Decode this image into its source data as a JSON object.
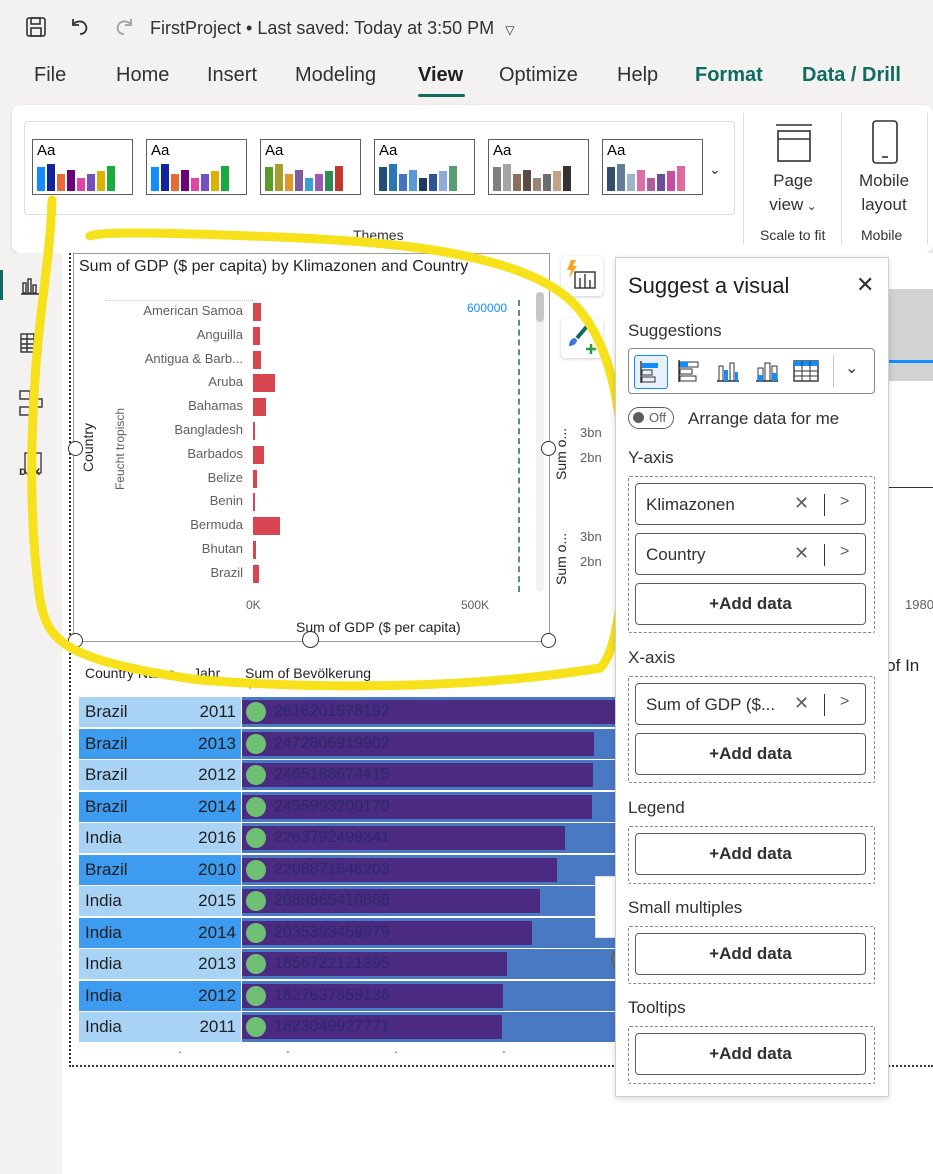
{
  "titlebar": {
    "doc_title": "FirstProject",
    "separator": "•",
    "last_saved": "Last saved: Today at 3:50 PM"
  },
  "menu": {
    "items": [
      "File",
      "Home",
      "Insert",
      "Modeling",
      "View",
      "Optimize",
      "Help",
      "Format",
      "Data / Drill"
    ],
    "active": "View"
  },
  "ribbon": {
    "theme_sample_text": "Aa",
    "themes_group_label": "Themes",
    "page_view_label": "Page",
    "page_view_label2": "view",
    "scale_to_fit_label": "Scale to fit",
    "mobile_layout_label": "Mobile",
    "mobile_layout_label2": "layout",
    "mobile_group_label": "Mobile",
    "themes": [
      [
        "#118dff",
        "#12239e",
        "#e66c37",
        "#6b007b",
        "#e044a7",
        "#744ec2",
        "#d9b300",
        "#1aab40"
      ],
      [
        "#118dff",
        "#12239e",
        "#e66c37",
        "#6b007b",
        "#e044a7",
        "#744ec2",
        "#d9b300",
        "#1aab40"
      ],
      [
        "#5b9b2a",
        "#a5a02c",
        "#e3962b",
        "#7d5e9c",
        "#3b9fd4",
        "#9b59b6",
        "#2e8b57",
        "#c0392b"
      ],
      [
        "#1f4e79",
        "#2e75b6",
        "#4472c4",
        "#5b9bd5",
        "#203864",
        "#2f5597",
        "#8faadc",
        "#5a9e6f"
      ],
      [
        "#7f7f7f",
        "#a5a5a5",
        "#8c6e5d",
        "#5a4a42",
        "#9c8374",
        "#6d6d6d",
        "#c2a38a",
        "#333333"
      ],
      [
        "#334e68",
        "#627d98",
        "#9fb3c8",
        "#d96fa6",
        "#b05d97",
        "#6b4c9a",
        "#c54ea0",
        "#e06aa0"
      ]
    ]
  },
  "chart": {
    "title": "Sum of GDP ($ per capita) by Klimazonen and Country",
    "y_axis_title": "Country",
    "group_label": "Feucht tropisch",
    "x_axis_title": "Sum of GDP ($ per capita)",
    "ref_line_label": "600000",
    "x_ticks": [
      "0K",
      "500K"
    ]
  },
  "chart_data": {
    "type": "bar",
    "title": "Sum of GDP ($ per capita) by Klimazonen and Country",
    "xlabel": "Sum of GDP ($ per capita)",
    "ylabel": "Country",
    "categories": [
      "American Samoa",
      "Anguilla",
      "Antigua & Barb...",
      "Aruba",
      "Bahamas",
      "Bangladesh",
      "Barbados",
      "Belize",
      "Benin",
      "Bermuda",
      "Bhutan",
      "Brazil"
    ],
    "values": [
      17000,
      15000,
      17000,
      49000,
      30000,
      3000,
      25000,
      8000,
      3000,
      60000,
      6000,
      13000
    ],
    "xlim": [
      0,
      700000
    ],
    "x_ticks": [
      "0K",
      "500K"
    ],
    "reference_line": 600000,
    "group": "Feucht tropisch",
    "colors": [
      "#d64550"
    ]
  },
  "behind_visuals": {
    "side_ticks_1": [
      "3bn",
      "2bn"
    ],
    "side_ticks_2": [
      "3bn",
      "2bn"
    ],
    "side_title_1": "Sum o...",
    "side_title_2": "Sum o...",
    "right_tick": "1980",
    "right_partial_text": "n of In"
  },
  "table": {
    "headers": [
      "Country Name",
      "Jahr",
      "Sum of Bevölkerung"
    ],
    "rows": [
      {
        "country": "Brazil",
        "year": "2011",
        "pop": "2616201578192",
        "frac": 1.0
      },
      {
        "country": "Brazil",
        "year": "2013",
        "pop": "2472806919902",
        "frac": 0.945
      },
      {
        "country": "Brazil",
        "year": "2012",
        "pop": "2465188674415",
        "frac": 0.942
      },
      {
        "country": "Brazil",
        "year": "2014",
        "pop": "2455993200170",
        "frac": 0.939
      },
      {
        "country": "India",
        "year": "2016",
        "pop": "2263792499341",
        "frac": 0.865
      },
      {
        "country": "Brazil",
        "year": "2010",
        "pop": "2208871646203",
        "frac": 0.844
      },
      {
        "country": "India",
        "year": "2015",
        "pop": "2089865410868",
        "frac": 0.799
      },
      {
        "country": "India",
        "year": "2014",
        "pop": "2035393459979",
        "frac": 0.778
      },
      {
        "country": "India",
        "year": "2013",
        "pop": "1856722121395",
        "frac": 0.71
      },
      {
        "country": "India",
        "year": "2012",
        "pop": "1827637859136",
        "frac": 0.699
      },
      {
        "country": "India",
        "year": "2011",
        "pop": "1823049927771",
        "frac": 0.697
      }
    ]
  },
  "panel": {
    "title": "Suggest a visual",
    "suggestions_label": "Suggestions",
    "toggle_state": "Off",
    "arrange_label": "Arrange data for me",
    "y_axis_label": "Y-axis",
    "y_fields": [
      "Klimazonen",
      "Country"
    ],
    "x_axis_label": "X-axis",
    "x_fields": [
      "Sum of GDP ($..."
    ],
    "legend_label": "Legend",
    "small_multiples_label": "Small multiples",
    "tooltips_label": "Tooltips",
    "add_data": "+Add data"
  }
}
